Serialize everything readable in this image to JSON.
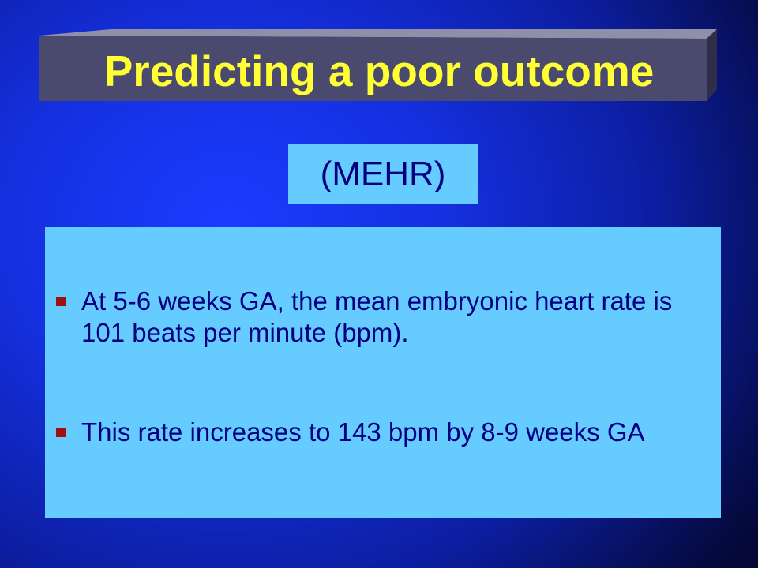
{
  "slide": {
    "title": "Predicting a poor outcome",
    "subtitle": "(MEHR)",
    "bullets": [
      "At 5-6 weeks GA, the mean embryonic heart rate is 101 beats per minute (bpm).",
      "This rate increases to 143 bpm by 8-9 weeks GA"
    ]
  },
  "colors": {
    "background": "#1530e0",
    "title_banner": "#4a4a6e",
    "title_text": "#ffff33",
    "box_fill": "#66ccff",
    "body_text": "#000080",
    "bullet_marker": "#a01010"
  }
}
